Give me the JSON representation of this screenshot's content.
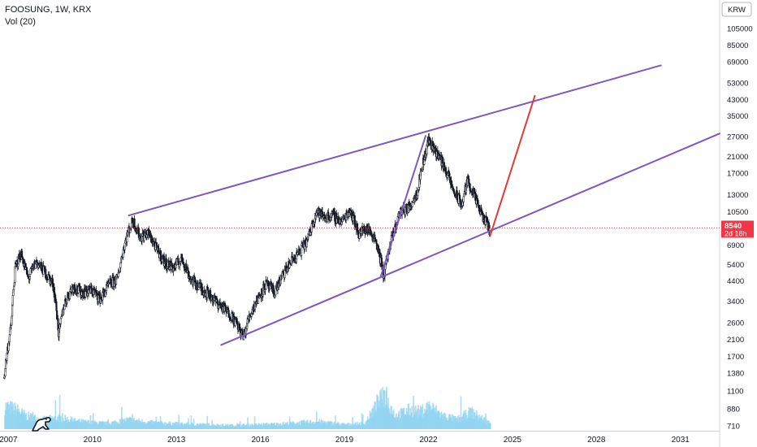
{
  "legend": {
    "title": "FOOSUNG, 1W, KRX",
    "volume": "Vol (20)"
  },
  "currency_badge": "KRW",
  "price_badge": {
    "price": "8540",
    "countdown": "2d 18h",
    "color": "#f23645"
  },
  "colors": {
    "up": "#26a69a",
    "down": "#ef5350",
    "candle": "#131722",
    "volume": "#8fd3f0",
    "trendline": "#7e57c2",
    "projection": "#e53935",
    "price_line": "#f23645"
  },
  "chart_data": {
    "type": "candlestick",
    "y_scale": "log",
    "ylim": [
      680,
      125000
    ],
    "xlim": [
      2006.7,
      2032.4
    ],
    "y_ticks": [
      105000,
      85000,
      69000,
      53000,
      43000,
      35000,
      27000,
      21000,
      17000,
      13000,
      10500,
      6900,
      5400,
      4400,
      3400,
      2600,
      2100,
      1700,
      1380,
      1100,
      880,
      710
    ],
    "x_ticks": [
      "2007",
      "2010",
      "2013",
      "2016",
      "2019",
      "2022",
      "2025",
      "2028",
      "2031"
    ],
    "last_price": 8540,
    "price_path": [
      [
        2006.85,
        1300
      ],
      [
        2007.1,
        2500
      ],
      [
        2007.25,
        5200
      ],
      [
        2007.45,
        6200
      ],
      [
        2007.7,
        4500
      ],
      [
        2008.0,
        5600
      ],
      [
        2008.3,
        4900
      ],
      [
        2008.6,
        4200
      ],
      [
        2008.8,
        2200
      ],
      [
        2009.0,
        3300
      ],
      [
        2009.3,
        4100
      ],
      [
        2009.6,
        3800
      ],
      [
        2010.0,
        3900
      ],
      [
        2010.3,
        3500
      ],
      [
        2010.6,
        4200
      ],
      [
        2010.9,
        4500
      ],
      [
        2011.2,
        7500
      ],
      [
        2011.45,
        9400
      ],
      [
        2011.7,
        7600
      ],
      [
        2012.0,
        8000
      ],
      [
        2012.3,
        6500
      ],
      [
        2012.6,
        5500
      ],
      [
        2012.9,
        5200
      ],
      [
        2013.2,
        5800
      ],
      [
        2013.5,
        4500
      ],
      [
        2013.8,
        4100
      ],
      [
        2014.1,
        3800
      ],
      [
        2014.4,
        3400
      ],
      [
        2014.7,
        3100
      ],
      [
        2015.0,
        2800
      ],
      [
        2015.4,
        2150
      ],
      [
        2015.6,
        2800
      ],
      [
        2015.9,
        3500
      ],
      [
        2016.2,
        4200
      ],
      [
        2016.5,
        3800
      ],
      [
        2016.8,
        4700
      ],
      [
        2017.1,
        5600
      ],
      [
        2017.4,
        6300
      ],
      [
        2017.7,
        7400
      ],
      [
        2018.0,
        10500
      ],
      [
        2018.3,
        9800
      ],
      [
        2018.6,
        10000
      ],
      [
        2018.9,
        9200
      ],
      [
        2019.2,
        10800
      ],
      [
        2019.5,
        8000
      ],
      [
        2019.8,
        8500
      ],
      [
        2020.1,
        7500
      ],
      [
        2020.4,
        4700
      ],
      [
        2020.7,
        7500
      ],
      [
        2021.0,
        10500
      ],
      [
        2021.3,
        11000
      ],
      [
        2021.6,
        13500
      ],
      [
        2021.9,
        22000
      ],
      [
        2022.0,
        26000
      ],
      [
        2022.3,
        22000
      ],
      [
        2022.6,
        18000
      ],
      [
        2022.9,
        13500
      ],
      [
        2023.2,
        11500
      ],
      [
        2023.4,
        15500
      ],
      [
        2023.7,
        12000
      ],
      [
        2023.9,
        10000
      ],
      [
        2024.2,
        8540
      ]
    ],
    "volume_path": [
      [
        2006.85,
        0.6
      ],
      [
        2007.3,
        0.5
      ],
      [
        2007.6,
        0.35
      ],
      [
        2008.2,
        0.25
      ],
      [
        2008.8,
        0.3
      ],
      [
        2009.5,
        0.2
      ],
      [
        2010.5,
        0.15
      ],
      [
        2011.3,
        0.25
      ],
      [
        2012.0,
        0.18
      ],
      [
        2013.0,
        0.14
      ],
      [
        2014.0,
        0.12
      ],
      [
        2015.0,
        0.1
      ],
      [
        2016.0,
        0.12
      ],
      [
        2017.0,
        0.15
      ],
      [
        2018.0,
        0.2
      ],
      [
        2019.0,
        0.12
      ],
      [
        2019.7,
        0.15
      ],
      [
        2020.4,
        0.9
      ],
      [
        2020.8,
        0.35
      ],
      [
        2021.3,
        0.5
      ],
      [
        2021.7,
        0.45
      ],
      [
        2022.0,
        0.6
      ],
      [
        2022.5,
        0.35
      ],
      [
        2023.0,
        0.25
      ],
      [
        2023.5,
        0.45
      ],
      [
        2024.2,
        0.15
      ]
    ],
    "trendlines": [
      {
        "points": [
          [
            2011.3,
            10000
          ],
          [
            2030.3,
            66000
          ]
        ],
        "color": "#7e57c2"
      },
      {
        "points": [
          [
            2014.6,
            1960
          ],
          [
            2032.4,
            28000
          ]
        ],
        "color": "#7e57c2"
      },
      {
        "points": [
          [
            2020.3,
            4650
          ],
          [
            2021.9,
            27200
          ]
        ],
        "color": "#7e57c2"
      },
      {
        "points": [
          [
            2024.2,
            7700
          ],
          [
            2025.8,
            45000
          ]
        ],
        "color": "#e53935"
      }
    ]
  }
}
